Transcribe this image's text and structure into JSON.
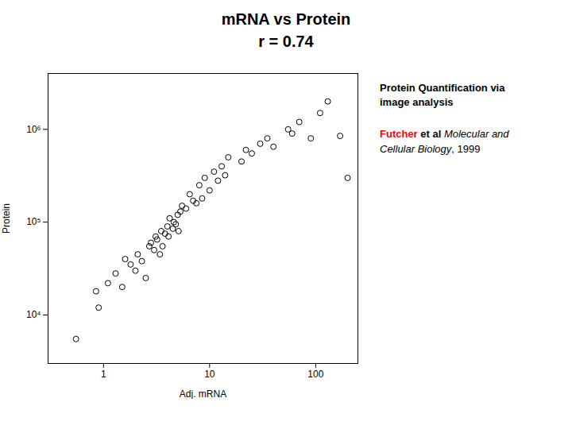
{
  "chart_data": {
    "type": "scatter",
    "title": [
      "mRNA vs Protein",
      "r = 0.74"
    ],
    "xlabel": "Adj. mRNA",
    "ylabel": "Protein",
    "log": true,
    "color": "#000000",
    "marker": "hollow circle",
    "x": [
      0.55,
      0.85,
      0.9,
      1.1,
      1.3,
      1.5,
      1.6,
      1.8,
      2.0,
      2.1,
      2.3,
      2.5,
      2.7,
      2.8,
      3.0,
      3.1,
      3.2,
      3.4,
      3.5,
      3.6,
      3.8,
      4.0,
      4.1,
      4.2,
      4.5,
      4.6,
      4.8,
      5.0,
      5.1,
      5.3,
      5.5,
      6.0,
      6.5,
      7.0,
      7.5,
      8.0,
      8.5,
      9.0,
      10.0,
      11.0,
      12.0,
      13.0,
      14.0,
      15.0,
      20.0,
      22.0,
      25.0,
      30.0,
      35.0,
      40.0,
      55.0,
      60.0,
      70.0,
      90.0,
      110.0,
      130.0,
      170.0,
      200.0
    ],
    "values": [
      5500,
      18000,
      12000,
      22000,
      28000,
      20000,
      40000,
      35000,
      30000,
      45000,
      38000,
      25000,
      55000,
      60000,
      50000,
      70000,
      65000,
      45000,
      80000,
      55000,
      75000,
      90000,
      70000,
      110000,
      85000,
      100000,
      95000,
      120000,
      80000,
      130000,
      150000,
      140000,
      200000,
      170000,
      160000,
      250000,
      180000,
      300000,
      220000,
      350000,
      280000,
      400000,
      320000,
      500000,
      450000,
      600000,
      550000,
      700000,
      800000,
      650000,
      1000000,
      900000,
      1200000,
      800000,
      1500000,
      2000000,
      850000,
      300000
    ],
    "xlim": [
      0.3,
      250
    ],
    "ylim": [
      3000,
      4000000
    ],
    "xticks": [
      1,
      10,
      100
    ],
    "yticks": [
      {
        "value": 10000,
        "label": "10⁴"
      },
      {
        "value": 100000,
        "label": "10⁵"
      },
      {
        "value": 1000000,
        "label": "10⁶"
      }
    ],
    "annotations": [
      [
        {
          "text": "Protein Quantification via\nimage analysis"
        }
      ],
      [
        {
          "text": "Futcher",
          "color": "red"
        },
        {
          "text": " et al "
        },
        {
          "text": "Molecular and\nCellular Biology"
        },
        {
          "text": ", 1999"
        }
      ]
    ]
  }
}
